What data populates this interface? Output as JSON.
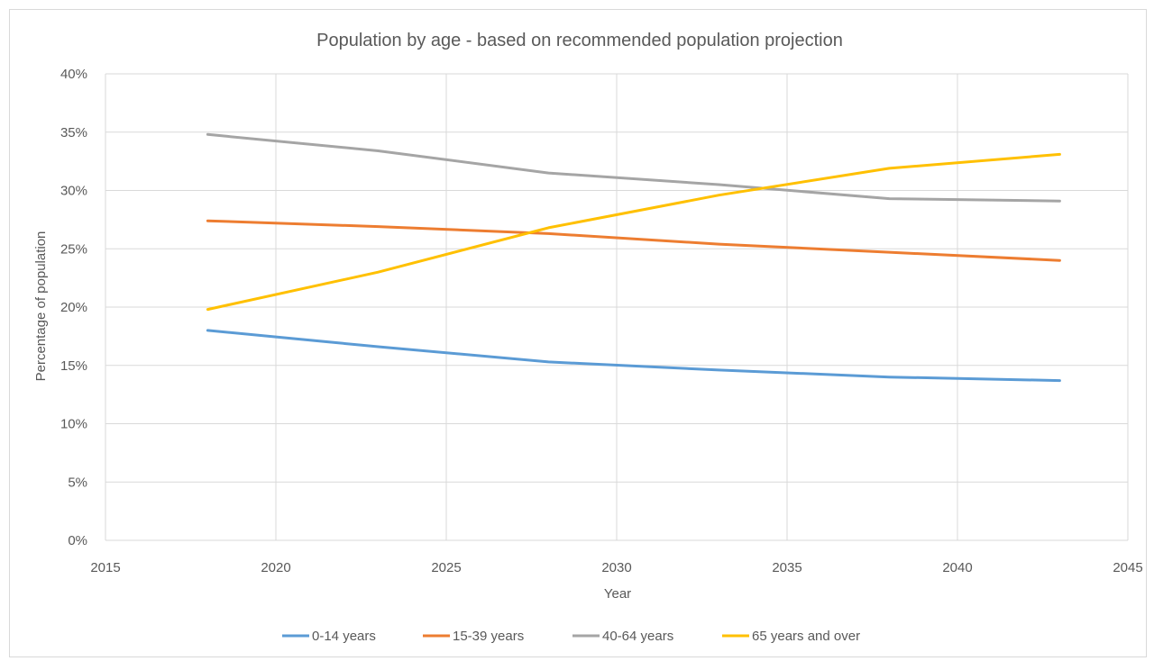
{
  "chart_data": {
    "type": "line",
    "title": "Population by age - based on recommended population projection",
    "xlabel": "Year",
    "ylabel": "Percentage of population",
    "xlim": [
      2015,
      2045
    ],
    "ylim": [
      0,
      40
    ],
    "x_ticks": [
      "2015",
      "2020",
      "2025",
      "2030",
      "2035",
      "2040",
      "2045"
    ],
    "y_ticks": [
      "0%",
      "5%",
      "10%",
      "15%",
      "20%",
      "25%",
      "30%",
      "35%",
      "40%"
    ],
    "grid": true,
    "legend_position": "bottom",
    "x": [
      2018,
      2023,
      2028,
      2033,
      2038,
      2043
    ],
    "series": [
      {
        "name": "0-14 years",
        "color": "#5b9bd5",
        "values": [
          18.0,
          16.6,
          15.3,
          14.6,
          14.0,
          13.7
        ]
      },
      {
        "name": "15-39 years",
        "color": "#ed7d31",
        "values": [
          27.4,
          26.9,
          26.3,
          25.4,
          24.7,
          24.0
        ]
      },
      {
        "name": "40-64 years",
        "color": "#a5a5a5",
        "values": [
          34.8,
          33.4,
          31.5,
          30.5,
          29.3,
          29.1
        ]
      },
      {
        "name": "65 years and over",
        "color": "#ffc000",
        "values": [
          19.8,
          23.0,
          26.8,
          29.6,
          31.9,
          33.1
        ]
      }
    ]
  }
}
